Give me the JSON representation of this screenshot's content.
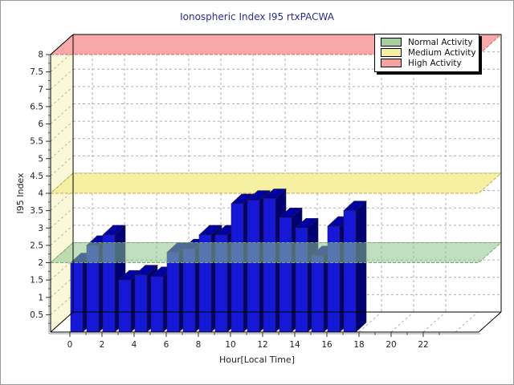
{
  "chart_data": {
    "type": "bar",
    "title": "Ionospheric Index I95 rtxPACWA",
    "xlabel": "Hour[Local Time]",
    "ylabel": "I95 Index",
    "x_hours": [
      0,
      1,
      2,
      3,
      4,
      5,
      6,
      7,
      8,
      9,
      10,
      11,
      12,
      13,
      14,
      15,
      16,
      17
    ],
    "values": [
      2.0,
      2.5,
      2.8,
      1.5,
      1.65,
      1.6,
      2.3,
      2.4,
      2.8,
      2.8,
      3.7,
      3.8,
      3.85,
      3.3,
      3.0,
      2.2,
      3.05,
      3.5
    ],
    "series_name": "I95",
    "ylim": [
      0,
      8
    ],
    "xlim": [
      0,
      24
    ],
    "y_tick_step": 0.5,
    "y_minor_tick_step": 0.25,
    "x_tick_step": 2,
    "x_tick_labels": [
      "0",
      "2",
      "4",
      "6",
      "8",
      "10",
      "12",
      "14",
      "16",
      "18",
      "20",
      "22"
    ],
    "grid": true,
    "legend_position": "top-right",
    "bands": [
      {
        "label": "Normal Activity",
        "level": 2,
        "swatch": "#a8cfa0",
        "fill": "rgba(140,195,140,0.55)",
        "border": "#78a878"
      },
      {
        "label": "Medium Activity",
        "level": 4,
        "swatch": "#f5f0a0",
        "fill": "#f6f0a2",
        "border": "#b8a860"
      },
      {
        "label": "High Activity",
        "level": 8,
        "swatch": "#f5a2a2",
        "fill": "#f7a8a8",
        "border": "#c87070"
      }
    ],
    "bar_colors": {
      "front": "#1717d8",
      "top": "#0000a3",
      "side": "#000070",
      "outline": "#20203a"
    },
    "wall_color": "#faf8d8",
    "grid_color": "#b0b0b0",
    "title_color": "#2b2b8f"
  }
}
